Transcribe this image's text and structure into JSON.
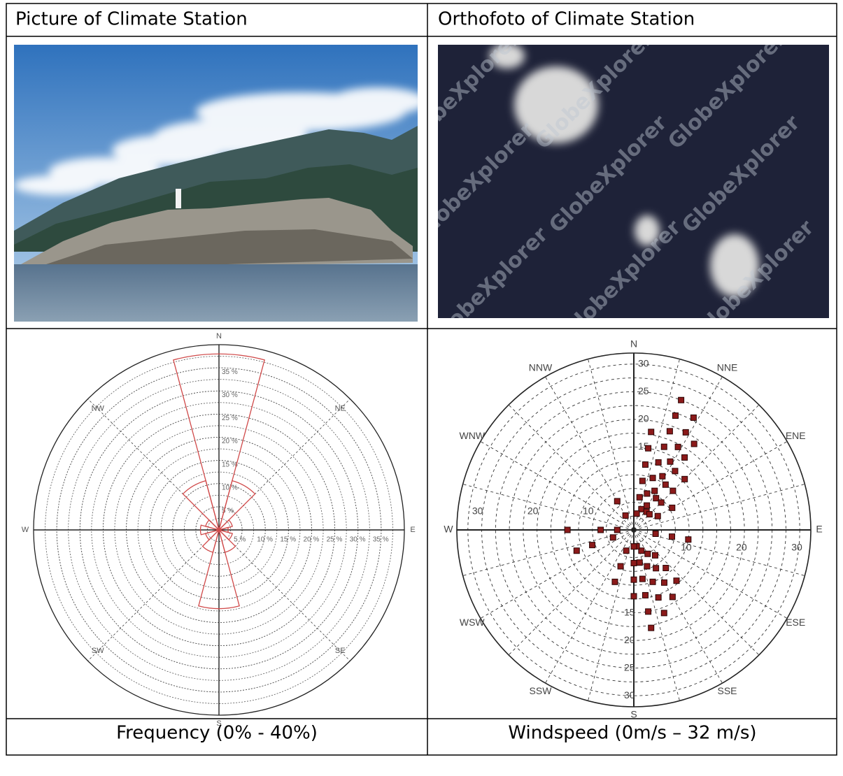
{
  "table": {
    "header": [
      "Picture of Climate Station",
      "Orthofoto of Climate Station"
    ],
    "orthofoto_watermark": "GlobeXplorer",
    "frequency_rose": {
      "type": "polar-bar",
      "direction_labels": [
        "N",
        "NE",
        "E",
        "SE",
        "S",
        "SW",
        "W",
        "NW"
      ],
      "rlim": [
        0,
        40
      ],
      "rticks": [
        {
          "value": 5,
          "label": "5 %"
        },
        {
          "value": 10,
          "label": "10 %"
        },
        {
          "value": 15,
          "label": "15 %"
        },
        {
          "value": 20,
          "label": "20 %"
        },
        {
          "value": 25,
          "label": "25 %"
        },
        {
          "value": 30,
          "label": "30 %"
        },
        {
          "value": 35,
          "label": "35 %"
        }
      ],
      "color": "#d04a4a",
      "sectors": {
        "direction": [
          0,
          30,
          60,
          90,
          120,
          150,
          180,
          210,
          240,
          270,
          300,
          330
        ],
        "values": [
          38,
          11,
          3,
          2,
          3,
          5,
          17,
          5,
          3,
          4,
          3,
          11
        ]
      }
    },
    "windspeed_rose": {
      "type": "polar-scatter",
      "direction_labels": [
        "N",
        "NNE",
        "ENE",
        "E",
        "ESE",
        "SSE",
        "S",
        "SSW",
        "WSW",
        "W",
        "WNW",
        "NNW"
      ],
      "rlim": [
        0,
        32
      ],
      "vertical_ticks": [
        15,
        20,
        25,
        30
      ],
      "horizontal_ticks": [
        10,
        20,
        30
      ],
      "color": "#8b1a1a",
      "points": {
        "direction": [
          20,
          20,
          20,
          20,
          20,
          20,
          20,
          20,
          28,
          28,
          28,
          28,
          28,
          28,
          28,
          35,
          35,
          35,
          35,
          35,
          35,
          45,
          45,
          45,
          45,
          10,
          10,
          10,
          10,
          10,
          10,
          160,
          160,
          160,
          160,
          160,
          170,
          170,
          170,
          170,
          170,
          170,
          150,
          150,
          150,
          150,
          140,
          140,
          140,
          180,
          180,
          180,
          180,
          200,
          200,
          200,
          250,
          250,
          250,
          270,
          270,
          270,
          100,
          100,
          100,
          330,
          330,
          60,
          60
        ],
        "speed": [
          4,
          7,
          10,
          13,
          16,
          19,
          22,
          25,
          5,
          8,
          11,
          14,
          17,
          20,
          23,
          4,
          7,
          10,
          13,
          16,
          19,
          4,
          7,
          10,
          13,
          3,
          6,
          9,
          12,
          15,
          18,
          4,
          7,
          10,
          13,
          16,
          3,
          6,
          9,
          12,
          15,
          18,
          5,
          8,
          11,
          14,
          6,
          9,
          12,
          3,
          6,
          9,
          12,
          4,
          7,
          10,
          4,
          8,
          11,
          3,
          6,
          12,
          4,
          7,
          10,
          3,
          6,
          5,
          8
        ]
      }
    },
    "captions": [
      "Frequency (0% - 40%)",
      "Windspeed (0m/s – 32 m/s)"
    ]
  }
}
